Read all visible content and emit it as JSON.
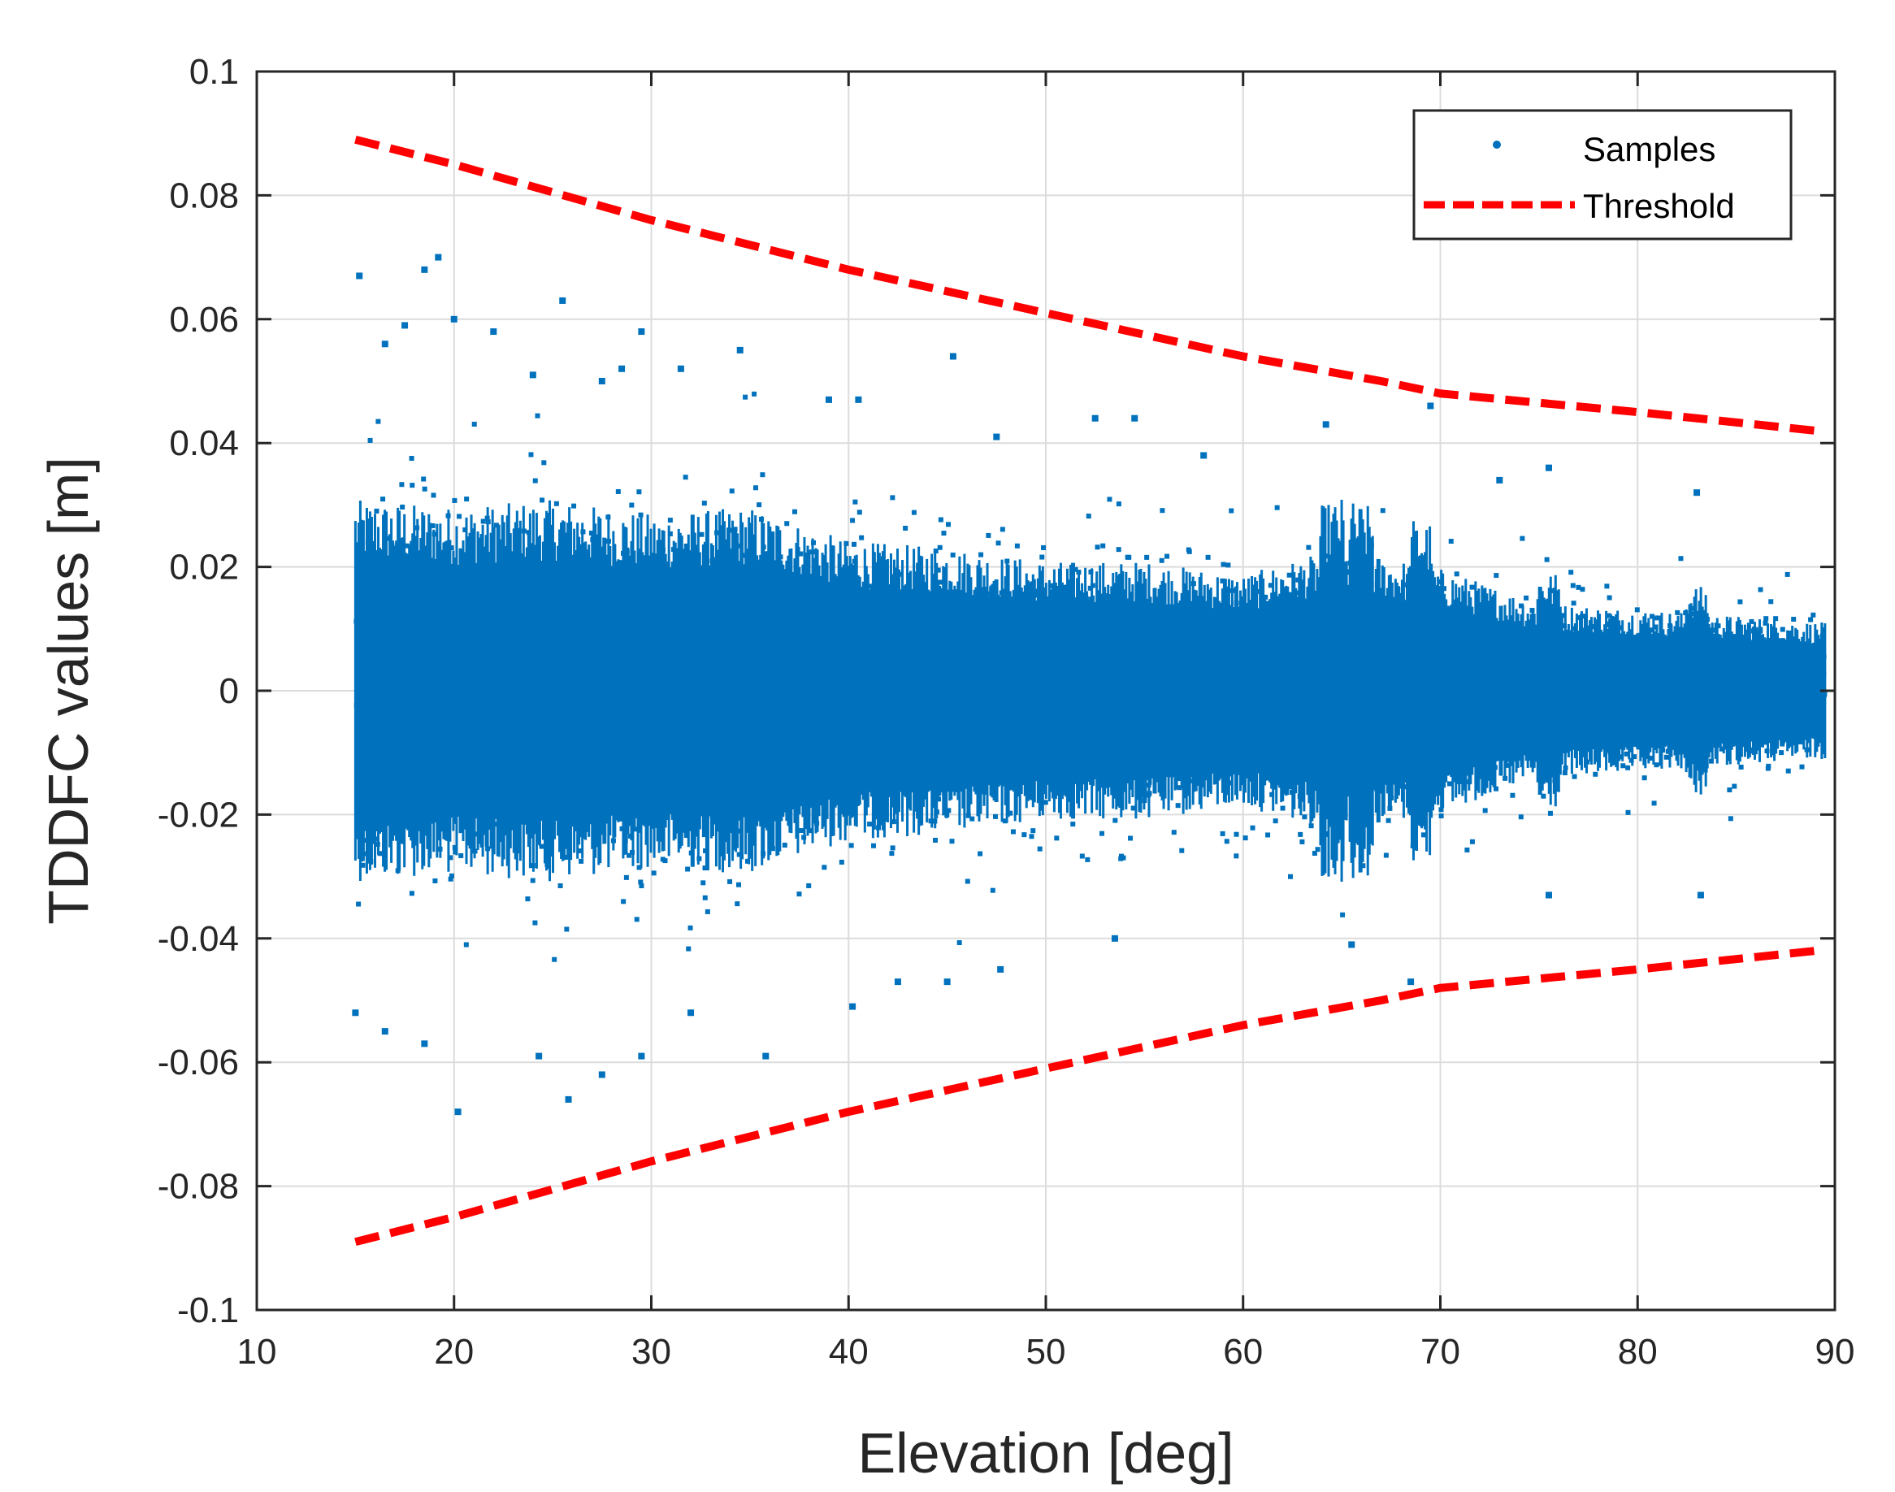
{
  "chart_data": {
    "type": "scatter",
    "xlabel": "Elevation [deg]",
    "ylabel": "TDDFC values [m]",
    "xlim": [
      10,
      90
    ],
    "ylim": [
      -0.1,
      0.1
    ],
    "xticks": [
      10,
      20,
      30,
      40,
      50,
      60,
      70,
      80,
      90
    ],
    "yticks": [
      -0.1,
      -0.08,
      -0.06,
      -0.04,
      -0.02,
      0,
      0.02,
      0.04,
      0.06,
      0.08,
      0.1
    ],
    "xtick_labels": [
      "10",
      "20",
      "30",
      "40",
      "50",
      "60",
      "70",
      "80",
      "90"
    ],
    "ytick_labels": [
      "-0.1",
      "-0.08",
      "-0.06",
      "-0.04",
      "-0.02",
      "0",
      "0.02",
      "0.04",
      "0.06",
      "0.08",
      "0.1"
    ],
    "grid": true,
    "legend_position": "top-right",
    "legend": [
      {
        "label": "Samples",
        "marker": "dot",
        "color": "#0072BD"
      },
      {
        "label": "Threshold",
        "marker": "dashed-line",
        "color": "#FF0000"
      }
    ],
    "series": [
      {
        "name": "Samples",
        "kind": "scatter",
        "color": "#0072BD",
        "x_range": [
          15,
          89.5
        ],
        "envelope": [
          {
            "x": 15,
            "spread": 0.028
          },
          {
            "x": 20,
            "spread": 0.027
          },
          {
            "x": 25,
            "spread": 0.028
          },
          {
            "x": 30,
            "spread": 0.026
          },
          {
            "x": 35,
            "spread": 0.027
          },
          {
            "x": 40,
            "spread": 0.022
          },
          {
            "x": 45,
            "spread": 0.021
          },
          {
            "x": 50,
            "spread": 0.019
          },
          {
            "x": 55,
            "spread": 0.019
          },
          {
            "x": 60,
            "spread": 0.017
          },
          {
            "x": 65,
            "spread": 0.021
          },
          {
            "x": 70,
            "spread": 0.018
          },
          {
            "x": 75,
            "spread": 0.013
          },
          {
            "x": 80,
            "spread": 0.012
          },
          {
            "x": 85,
            "spread": 0.011
          },
          {
            "x": 89.5,
            "spread": 0.01
          }
        ],
        "outliers": [
          [
            15.2,
            0.067
          ],
          [
            18.5,
            0.068
          ],
          [
            19.2,
            0.07
          ],
          [
            20,
            0.06
          ],
          [
            25.5,
            0.063
          ],
          [
            22,
            0.058
          ],
          [
            16.5,
            0.056
          ],
          [
            17.5,
            0.059
          ],
          [
            29.5,
            0.058
          ],
          [
            34.5,
            0.055
          ],
          [
            45.3,
            0.054
          ],
          [
            28.5,
            0.052
          ],
          [
            31.5,
            0.052
          ],
          [
            27.5,
            0.05
          ],
          [
            24,
            0.051
          ],
          [
            39,
            0.047
          ],
          [
            40.5,
            0.047
          ],
          [
            52.5,
            0.044
          ],
          [
            54.5,
            0.044
          ],
          [
            64.2,
            0.043
          ],
          [
            69.5,
            0.046
          ],
          [
            47.5,
            0.041
          ],
          [
            58,
            0.038
          ],
          [
            73,
            0.034
          ],
          [
            75.5,
            0.036
          ],
          [
            83,
            0.032
          ],
          [
            15,
            -0.052
          ],
          [
            16.5,
            -0.055
          ],
          [
            18.5,
            -0.057
          ],
          [
            20.2,
            -0.068
          ],
          [
            24.3,
            -0.059
          ],
          [
            25.8,
            -0.066
          ],
          [
            27.5,
            -0.062
          ],
          [
            29.5,
            -0.059
          ],
          [
            32,
            -0.052
          ],
          [
            35.8,
            -0.059
          ],
          [
            40.2,
            -0.051
          ],
          [
            42.5,
            -0.047
          ],
          [
            45,
            -0.047
          ],
          [
            47.7,
            -0.045
          ],
          [
            53.5,
            -0.04
          ],
          [
            65.5,
            -0.041
          ],
          [
            68.5,
            -0.047
          ],
          [
            75.5,
            -0.033
          ],
          [
            83.2,
            -0.033
          ]
        ]
      },
      {
        "name": "Threshold",
        "kind": "line",
        "style": "dashed",
        "color": "#FF0000",
        "x": [
          15,
          20,
          30,
          40,
          50,
          60,
          67,
          70,
          80,
          89
        ],
        "y_upper": [
          0.089,
          0.085,
          0.076,
          0.068,
          0.061,
          0.054,
          0.05,
          0.048,
          0.045,
          0.042
        ],
        "y_lower": [
          -0.089,
          -0.085,
          -0.076,
          -0.068,
          -0.061,
          -0.054,
          -0.05,
          -0.048,
          -0.045,
          -0.042
        ]
      }
    ]
  }
}
